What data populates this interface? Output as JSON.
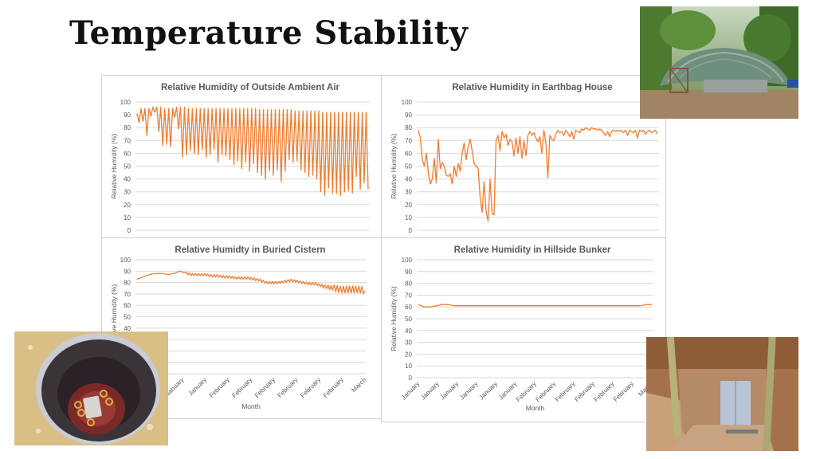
{
  "slide": {
    "title": "Temperature Stability"
  },
  "photos": [
    {
      "name": "earthbag-house-photo",
      "description": "thatched-roof earthbag house"
    },
    {
      "name": "buried-cistern-photo",
      "description": "buried cistern with sensor"
    },
    {
      "name": "hillside-bunker-photo",
      "description": "hillside bunker entrance"
    }
  ],
  "chart_data": [
    {
      "type": "line",
      "title": "Relative Humidity of Outside Ambient Air",
      "ylabel": "Relative Humidity (%)",
      "xlabel": "",
      "ylim": [
        0,
        100
      ],
      "yticks": [
        0,
        10,
        20,
        30,
        40,
        50,
        60,
        70,
        80,
        90,
        100
      ],
      "xticks": [],
      "grid": true,
      "series": [
        {
          "name": "Outside Ambient Air",
          "color": "#ed7d31",
          "peaks": [
            91,
            95,
            95,
            95,
            96,
            96,
            96,
            95,
            95,
            95,
            96,
            96,
            96,
            95,
            95,
            95,
            95,
            95,
            95,
            95,
            95,
            95,
            95,
            95,
            95,
            95,
            95,
            95,
            95,
            95,
            95,
            94,
            94,
            94,
            94,
            94,
            94,
            94,
            94,
            94,
            93,
            93,
            93,
            93,
            93,
            93,
            93,
            92,
            92,
            92,
            92,
            92,
            92,
            92,
            92,
            92,
            92,
            92,
            92
          ],
          "troughs": [
            84,
            85,
            74,
            89,
            92,
            77,
            66,
            67,
            65,
            88,
            79,
            57,
            59,
            62,
            60,
            59,
            63,
            57,
            59,
            63,
            53,
            59,
            58,
            55,
            51,
            54,
            48,
            53,
            46,
            52,
            45,
            43,
            40,
            46,
            43,
            47,
            38,
            46,
            55,
            53,
            54,
            47,
            45,
            42,
            43,
            40,
            30,
            27,
            33,
            29,
            29,
            27,
            30,
            31,
            29,
            42,
            32,
            37,
            32
          ]
        }
      ]
    },
    {
      "type": "line",
      "title": "Relative Humidity in Earthbag House",
      "ylabel": "Relative Humidity (%)",
      "xlabel": "",
      "ylim": [
        0,
        100
      ],
      "yticks": [
        0,
        10,
        20,
        30,
        40,
        50,
        60,
        70,
        80,
        90,
        100
      ],
      "xticks": [],
      "grid": true,
      "series": [
        {
          "name": "Earthbag House",
          "color": "#ed7d31",
          "values": [
            78,
            72,
            55,
            50,
            60,
            45,
            36,
            40,
            56,
            37,
            71,
            48,
            53,
            50,
            43,
            42,
            44,
            36,
            50,
            42,
            52,
            46,
            60,
            68,
            55,
            65,
            71,
            62,
            52,
            50,
            48,
            26,
            14,
            38,
            15,
            7,
            40,
            13,
            12,
            70,
            74,
            62,
            77,
            72,
            75,
            66,
            71,
            69,
            58,
            72,
            60,
            73,
            56,
            70,
            58,
            74,
            77,
            74,
            76,
            72,
            69,
            73,
            60,
            78,
            68,
            41,
            74,
            71,
            70,
            75,
            78,
            76,
            77,
            74,
            78,
            76,
            73,
            77,
            71,
            78,
            77,
            76,
            79,
            78,
            80,
            79,
            78,
            80,
            79,
            79,
            78,
            79,
            78,
            76,
            74,
            77,
            73,
            77,
            78,
            77,
            78,
            77,
            78,
            76,
            78,
            74,
            78,
            77,
            76,
            78,
            72,
            78,
            77,
            78,
            75,
            77,
            78,
            76,
            77,
            78,
            75
          ],
          "values_resolution": "approximate"
        }
      ]
    },
    {
      "type": "line",
      "title": "Relative Humidty in Buried Cistern",
      "ylabel": "Relative Humidity (%)",
      "xlabel": "Month",
      "ylim": [
        0,
        100
      ],
      "yticks": [
        0,
        10,
        20,
        30,
        40,
        50,
        60,
        70,
        80,
        90,
        100
      ],
      "xticks": [
        "January",
        "January",
        "January",
        "January",
        "February",
        "February",
        "February",
        "February",
        "February",
        "February",
        "March"
      ],
      "grid": true,
      "series": [
        {
          "name": "Buried Cistern",
          "color": "#ed7d31",
          "trend": [
            83,
            85,
            87,
            88,
            88,
            87,
            88,
            90,
            88,
            87,
            87,
            87,
            86,
            86,
            85,
            85,
            84,
            84,
            84,
            83,
            82,
            80,
            80,
            80,
            81,
            82,
            81,
            80,
            79,
            79,
            77,
            76,
            75,
            74,
            74,
            74,
            74,
            73
          ],
          "ripple_amplitude": [
            0,
            0,
            0,
            0,
            0,
            0,
            0,
            0,
            1,
            1,
            1,
            1,
            1,
            1,
            1,
            1,
            1,
            1,
            1,
            1,
            1,
            1,
            1,
            1,
            1,
            1,
            1,
            1,
            1,
            1,
            1.5,
            2,
            3,
            3,
            3,
            3,
            3,
            3
          ]
        }
      ]
    },
    {
      "type": "line",
      "title": "Relative Humidity in Hillside Bunker",
      "ylabel": "Relative Humidity (%)",
      "xlabel": "Month",
      "ylim": [
        0,
        100
      ],
      "yticks": [
        0,
        10,
        20,
        30,
        40,
        50,
        60,
        70,
        80,
        90,
        100
      ],
      "xticks": [
        "January",
        "January",
        "January",
        "January",
        "January",
        "January",
        "February",
        "February",
        "February",
        "February",
        "February",
        "February",
        "March"
      ],
      "grid": true,
      "series": [
        {
          "name": "Hillside Bunker",
          "color": "#ed7d31",
          "values": [
            62,
            60,
            60,
            61,
            62,
            62,
            61,
            61,
            61,
            61,
            61,
            61,
            61,
            61,
            61,
            61,
            61,
            61,
            61,
            61,
            61,
            61,
            61,
            61,
            61,
            61,
            61,
            61,
            61,
            61,
            61,
            61,
            61,
            61,
            61,
            61,
            61,
            61,
            62,
            62
          ]
        }
      ]
    }
  ]
}
